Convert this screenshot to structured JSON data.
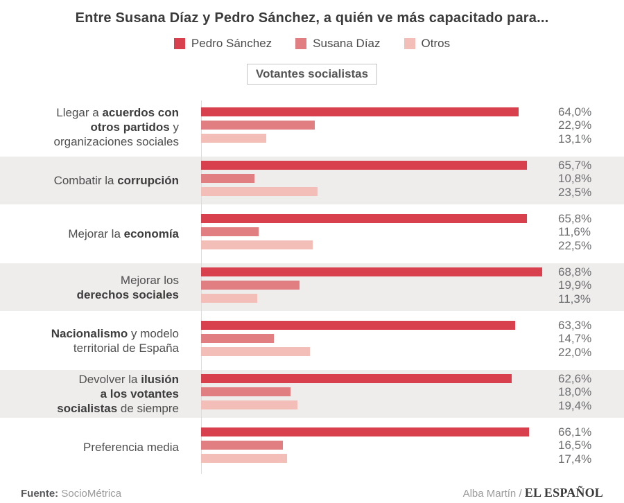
{
  "title": "Entre Susana Díaz y Pedro Sánchez, a quién ve más capacitado para...",
  "subtitle_badge": "Votantes socialistas",
  "legend": [
    {
      "label": "Pedro Sánchez",
      "color": "#d9404e"
    },
    {
      "label": "Susana Díaz",
      "color": "#e07e82"
    },
    {
      "label": "Otros",
      "color": "#f3bdb8"
    }
  ],
  "footer": {
    "source_label": "Fuente:",
    "source": "SocioMétrica",
    "credit": "Alba Martín /",
    "brand": "EL ESPAÑOL"
  },
  "chart_data": {
    "type": "bar",
    "orientation": "horizontal",
    "unit": "%",
    "xlim": [
      0,
      70
    ],
    "grid": false,
    "legend_position": "top",
    "series": [
      "Pedro Sánchez",
      "Susana Díaz",
      "Otros"
    ],
    "series_colors": [
      "#d9404e",
      "#e07e82",
      "#f3bdb8"
    ],
    "categories": [
      "Llegar a acuerdos con otros partidos y organizaciones sociales",
      "Combatir la corrupción",
      "Mejorar la economía",
      "Mejorar los derechos sociales",
      "Nacionalismo y modelo territorial de España",
      "Devolver la ilusión a los votantes socialistas de siempre",
      "Preferencia media"
    ],
    "rows": [
      {
        "category": "Llegar a acuerdos con otros partidos y organizaciones sociales",
        "label_lines": [
          [
            {
              "t": "Llegar a ",
              "b": false
            },
            {
              "t": "acuerdos con",
              "b": true
            }
          ],
          [
            {
              "t": "otros partidos",
              "b": true
            },
            {
              "t": " y",
              "b": false
            }
          ],
          [
            {
              "t": "organizaciones sociales",
              "b": false
            }
          ]
        ],
        "values": [
          64.0,
          22.9,
          13.1
        ],
        "value_labels": [
          "64,0%",
          "22,9%",
          "13,1%"
        ],
        "shaded": false
      },
      {
        "category": "Combatir la corrupción",
        "label_lines": [
          [
            {
              "t": "Combatir la ",
              "b": false
            },
            {
              "t": "corrupción",
              "b": true
            }
          ]
        ],
        "values": [
          65.7,
          10.8,
          23.5
        ],
        "value_labels": [
          "65,7%",
          "10,8%",
          "23,5%"
        ],
        "shaded": true
      },
      {
        "category": "Mejorar la economía",
        "label_lines": [
          [
            {
              "t": "Mejorar la ",
              "b": false
            },
            {
              "t": "economía",
              "b": true
            }
          ]
        ],
        "values": [
          65.8,
          11.6,
          22.5
        ],
        "value_labels": [
          "65,8%",
          "11,6%",
          "22,5%"
        ],
        "shaded": false
      },
      {
        "category": "Mejorar los derechos sociales",
        "label_lines": [
          [
            {
              "t": "Mejorar los",
              "b": false
            }
          ],
          [
            {
              "t": "derechos sociales",
              "b": true
            }
          ]
        ],
        "values": [
          68.8,
          19.9,
          11.3
        ],
        "value_labels": [
          "68,8%",
          "19,9%",
          "11,3%"
        ],
        "shaded": true
      },
      {
        "category": "Nacionalismo y modelo territorial de España",
        "label_lines": [
          [
            {
              "t": "Nacionalismo",
              "b": true
            },
            {
              "t": " y modelo",
              "b": false
            }
          ],
          [
            {
              "t": "territorial de España",
              "b": false
            }
          ]
        ],
        "values": [
          63.3,
          14.7,
          22.0
        ],
        "value_labels": [
          "63,3%",
          "14,7%",
          "22,0%"
        ],
        "shaded": false
      },
      {
        "category": "Devolver la ilusión a los votantes socialistas de siempre",
        "label_lines": [
          [
            {
              "t": "Devolver la ",
              "b": false
            },
            {
              "t": "ilusión",
              "b": true
            }
          ],
          [
            {
              "t": "a los votantes",
              "b": true
            }
          ],
          [
            {
              "t": "socialistas",
              "b": true
            },
            {
              "t": " de siempre",
              "b": false
            }
          ]
        ],
        "values": [
          62.6,
          18.0,
          19.4
        ],
        "value_labels": [
          "62,6%",
          "18,0%",
          "19,4%"
        ],
        "shaded": true
      },
      {
        "category": "Preferencia media",
        "label_lines": [
          [
            {
              "t": "Preferencia media",
              "b": false
            }
          ]
        ],
        "values": [
          66.1,
          16.5,
          17.4
        ],
        "value_labels": [
          "66,1%",
          "16,5%",
          "17,4%"
        ],
        "shaded": false
      }
    ]
  }
}
